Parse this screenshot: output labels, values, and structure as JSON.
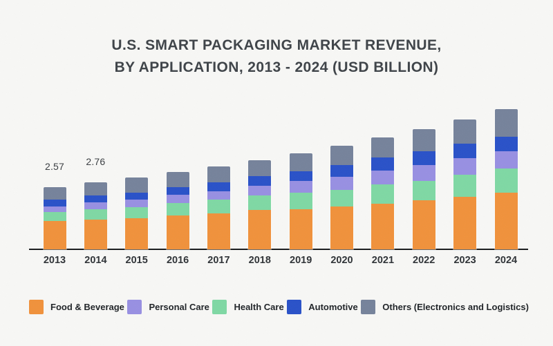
{
  "title": {
    "line1": "U.S. SMART PACKAGING MARKET REVENUE,",
    "line2": "BY APPLICATION, 2013 - 2024 (USD BILLION)"
  },
  "chart_data": {
    "type": "bar",
    "stacked": true,
    "title": "U.S. SMART PACKAGING MARKET REVENUE, BY APPLICATION, 2013 - 2024 (USD BILLION)",
    "unit": "USD Billion",
    "categories": [
      "2013",
      "2014",
      "2015",
      "2016",
      "2017",
      "2018",
      "2019",
      "2020",
      "2021",
      "2022",
      "2023",
      "2024"
    ],
    "totals": [
      2.57,
      2.76,
      2.97,
      3.2,
      3.44,
      3.7,
      3.98,
      4.28,
      4.62,
      4.96,
      5.36,
      5.81
    ],
    "series": [
      {
        "name": "Food & Beverage",
        "color": "#F0923C",
        "values": [
          1.17,
          1.24,
          1.29,
          1.41,
          1.5,
          1.63,
          1.66,
          1.78,
          1.89,
          2.03,
          2.18,
          2.34
        ]
      },
      {
        "name": "Health Care",
        "color": "#7FD8A4",
        "values": [
          0.37,
          0.42,
          0.46,
          0.51,
          0.56,
          0.6,
          0.68,
          0.68,
          0.79,
          0.81,
          0.91,
          1.01
        ]
      },
      {
        "name": "Personal Care",
        "color": "#9890E2",
        "values": [
          0.23,
          0.28,
          0.3,
          0.35,
          0.34,
          0.4,
          0.48,
          0.54,
          0.58,
          0.65,
          0.69,
          0.72
        ]
      },
      {
        "name": "Automotive",
        "color": "#2A52C8",
        "values": [
          0.29,
          0.29,
          0.31,
          0.31,
          0.37,
          0.39,
          0.4,
          0.5,
          0.53,
          0.57,
          0.58,
          0.6
        ]
      },
      {
        "name": "Others (Electronics and Logistics)",
        "color": "#76839B",
        "values": [
          0.51,
          0.53,
          0.61,
          0.62,
          0.67,
          0.68,
          0.76,
          0.78,
          0.83,
          0.9,
          1.0,
          1.14
        ]
      }
    ],
    "stack_order": "bottom_to_top",
    "value_labels": [
      {
        "category": "2013",
        "text": "2.57"
      },
      {
        "category": "2014",
        "text": "2.76"
      }
    ],
    "legend_position": "bottom",
    "grid": false,
    "axis": {
      "baseline_color": "#1A1C1E"
    }
  },
  "legend": {
    "items": [
      {
        "label": "Food & Beverage",
        "color": "#F0923C"
      },
      {
        "label": "Personal Care",
        "color": "#9890E2"
      },
      {
        "label": "Health Care",
        "color": "#7FD8A4"
      },
      {
        "label": "Automotive",
        "color": "#2A52C8"
      },
      {
        "label": "Others (Electronics and Logistics)",
        "color": "#76839B"
      }
    ]
  }
}
